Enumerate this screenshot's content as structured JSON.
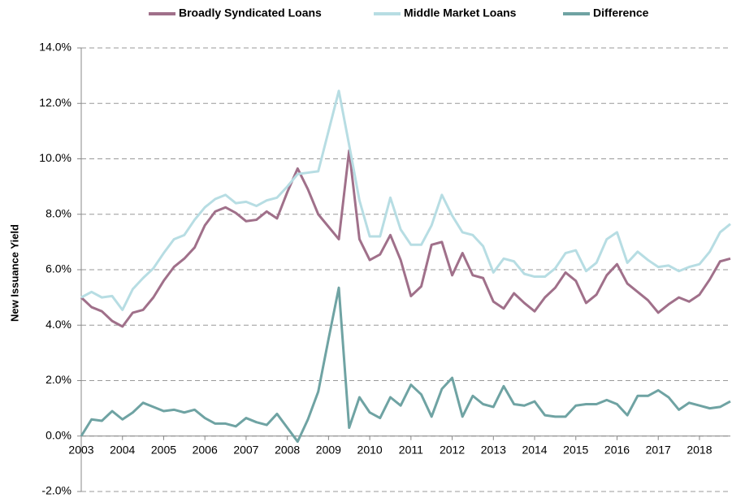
{
  "chart_data": {
    "type": "line",
    "y_label": "New Issuance Yield",
    "x": [
      2003,
      2003.25,
      2003.5,
      2003.75,
      2004,
      2004.25,
      2004.5,
      2004.75,
      2005,
      2005.25,
      2005.5,
      2005.75,
      2006,
      2006.25,
      2006.5,
      2006.75,
      2007,
      2007.25,
      2007.5,
      2007.75,
      2008,
      2008.25,
      2008.5,
      2008.75,
      2009,
      2009.25,
      2009.5,
      2009.75,
      2010,
      2010.25,
      2010.5,
      2010.75,
      2011,
      2011.25,
      2011.5,
      2011.75,
      2012,
      2012.25,
      2012.5,
      2012.75,
      2013,
      2013.25,
      2013.5,
      2013.75,
      2014,
      2014.25,
      2014.5,
      2014.75,
      2015,
      2015.25,
      2015.5,
      2015.75,
      2016,
      2016.25,
      2016.5,
      2016.75,
      2017,
      2017.25,
      2017.5,
      2017.75,
      2018,
      2018.25,
      2018.5,
      2018.75
    ],
    "series": [
      {
        "name": "Broadly Syndicated Loans",
        "color": "#a0708a",
        "values": [
          5.0,
          4.65,
          4.5,
          4.15,
          3.95,
          4.45,
          4.55,
          5.0,
          5.6,
          6.1,
          6.4,
          6.8,
          7.6,
          8.1,
          8.25,
          8.05,
          7.75,
          7.8,
          8.1,
          7.85,
          8.8,
          9.65,
          8.9,
          8.0,
          7.55,
          7.1,
          10.3,
          7.1,
          6.35,
          6.55,
          7.25,
          6.35,
          5.05,
          5.4,
          6.9,
          7.0,
          5.8,
          6.6,
          5.8,
          5.7,
          4.85,
          4.6,
          5.15,
          4.8,
          4.5,
          5.0,
          5.35,
          5.9,
          5.6,
          4.8,
          5.1,
          5.8,
          6.2,
          5.5,
          5.2,
          4.9,
          4.45,
          4.75,
          5.0,
          4.85,
          5.1,
          5.65,
          6.3,
          6.4
        ]
      },
      {
        "name": "Middle Market Loans",
        "color": "#b7dde3",
        "values": [
          5.0,
          5.2,
          5.0,
          5.05,
          4.55,
          5.3,
          5.7,
          6.05,
          6.6,
          7.1,
          7.25,
          7.8,
          8.25,
          8.55,
          8.7,
          8.4,
          8.45,
          8.3,
          8.5,
          8.6,
          9.0,
          9.45,
          9.5,
          9.55,
          11.0,
          12.45,
          10.5,
          8.5,
          7.2,
          7.2,
          8.6,
          7.45,
          6.9,
          6.9,
          7.6,
          8.7,
          7.95,
          7.35,
          7.25,
          6.85,
          5.9,
          6.4,
          6.3,
          5.85,
          5.75,
          5.75,
          6.05,
          6.6,
          6.7,
          5.95,
          6.25,
          7.1,
          7.35,
          6.25,
          6.65,
          6.35,
          6.1,
          6.15,
          5.95,
          6.1,
          6.2,
          6.65,
          7.35,
          7.65
        ]
      },
      {
        "name": "Difference",
        "color": "#6fa3a3",
        "values": [
          0.0,
          0.6,
          0.55,
          0.9,
          0.6,
          0.85,
          1.2,
          1.05,
          0.9,
          0.95,
          0.85,
          0.95,
          0.65,
          0.45,
          0.45,
          0.35,
          0.65,
          0.5,
          0.4,
          0.8,
          0.3,
          -0.2,
          0.6,
          1.6,
          3.5,
          5.35,
          0.3,
          1.4,
          0.85,
          0.65,
          1.4,
          1.1,
          1.85,
          1.5,
          0.7,
          1.7,
          2.1,
          0.7,
          1.45,
          1.15,
          1.05,
          1.8,
          1.15,
          1.1,
          1.25,
          0.75,
          0.7,
          0.7,
          1.1,
          1.15,
          1.15,
          1.3,
          1.15,
          0.75,
          1.45,
          1.45,
          1.65,
          1.4,
          0.95,
          1.2,
          1.1,
          1.0,
          1.05,
          1.25
        ]
      }
    ],
    "xlim": [
      2003,
      2018.75
    ],
    "xticks": [
      2003,
      2004,
      2005,
      2006,
      2007,
      2008,
      2009,
      2010,
      2011,
      2012,
      2013,
      2014,
      2015,
      2016,
      2017,
      2018
    ],
    "ylim": [
      -2,
      14
    ],
    "yticks": [
      {
        "value": -2,
        "label": "-2.0%"
      },
      {
        "value": 0,
        "label": "0.0%"
      },
      {
        "value": 2,
        "label": "2.0%"
      },
      {
        "value": 4,
        "label": "4.0%"
      },
      {
        "value": 6,
        "label": "6.0%"
      },
      {
        "value": 8,
        "label": "8.0%"
      },
      {
        "value": 10,
        "label": "10.0%"
      },
      {
        "value": 12,
        "label": "12.0%"
      },
      {
        "value": 14,
        "label": "14.0%"
      }
    ],
    "grid": true,
    "legend": "top"
  }
}
